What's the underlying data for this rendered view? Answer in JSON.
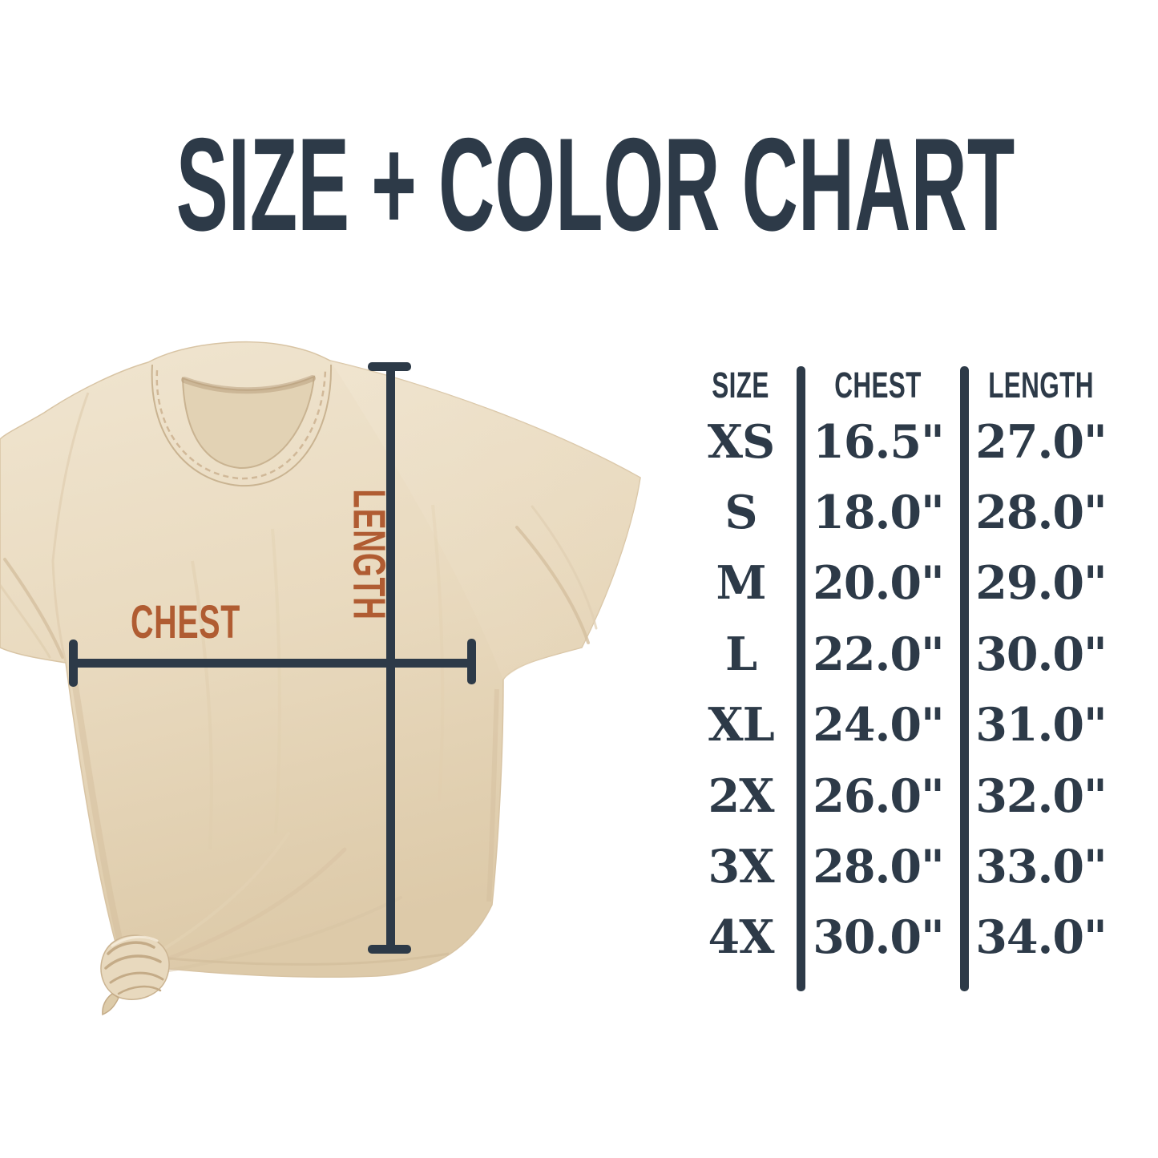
{
  "title": "SIZE + COLOR CHART",
  "colors": {
    "navy": "#2d3a48",
    "rust": "#b05c32",
    "shirt": "#e9dabf",
    "bg": "#ffffff"
  },
  "diagram": {
    "chest_label": "CHEST",
    "length_label": "LENGTH"
  },
  "size_table": {
    "columns": [
      "SIZE",
      "CHEST",
      "LENGTH"
    ],
    "rows": [
      {
        "size": "XS",
        "chest": "16.5\"",
        "length": "27.0\""
      },
      {
        "size": "S",
        "chest": "18.0\"",
        "length": "28.0\""
      },
      {
        "size": "M",
        "chest": "20.0\"",
        "length": "29.0\""
      },
      {
        "size": "L",
        "chest": "22.0\"",
        "length": "30.0\""
      },
      {
        "size": "XL",
        "chest": "24.0\"",
        "length": "31.0\""
      },
      {
        "size": "2X",
        "chest": "26.0\"",
        "length": "32.0\""
      },
      {
        "size": "3X",
        "chest": "28.0\"",
        "length": "33.0\""
      },
      {
        "size": "4X",
        "chest": "30.0\"",
        "length": "34.0\""
      }
    ]
  },
  "chart_data": {
    "type": "table",
    "title": "SIZE + COLOR CHART",
    "columns": [
      "SIZE",
      "CHEST",
      "LENGTH"
    ],
    "units": "inches",
    "rows": [
      [
        "XS",
        16.5,
        27.0
      ],
      [
        "S",
        18.0,
        28.0
      ],
      [
        "M",
        20.0,
        29.0
      ],
      [
        "L",
        22.0,
        30.0
      ],
      [
        "XL",
        24.0,
        31.0
      ],
      [
        "2X",
        26.0,
        32.0
      ],
      [
        "3X",
        28.0,
        33.0
      ],
      [
        "4X",
        30.0,
        34.0
      ]
    ]
  }
}
